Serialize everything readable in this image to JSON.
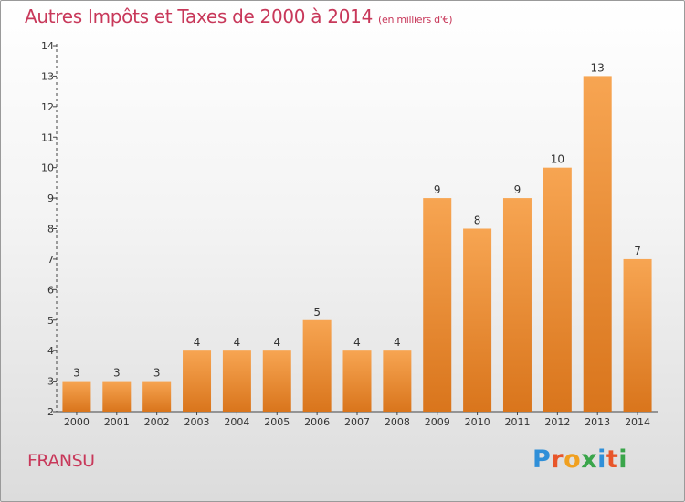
{
  "header": {
    "title": "Autres Impôts et Taxes de 2000 à 2014",
    "subtitle": "(en milliers d'€)"
  },
  "commune": "FRANSU",
  "logo": {
    "letters": [
      "P",
      "r",
      "o",
      "x",
      "i",
      "t",
      "i"
    ],
    "colors": [
      "#2f8fd8",
      "#e8562a",
      "#f0a020",
      "#3aa54a",
      "#2f8fd8",
      "#e8562a",
      "#3aa54a"
    ]
  },
  "colors": {
    "accent": "#c8385a",
    "bar_top": "#f7a552",
    "bar_bottom": "#d9751c"
  },
  "chart_data": {
    "type": "bar",
    "categories": [
      "2000",
      "2001",
      "2002",
      "2003",
      "2004",
      "2005",
      "2006",
      "2007",
      "2008",
      "2009",
      "2010",
      "2011",
      "2012",
      "2013",
      "2014"
    ],
    "values": [
      3,
      3,
      3,
      4,
      4,
      4,
      5,
      4,
      4,
      9,
      8,
      9,
      10,
      13,
      7
    ],
    "title": "Autres Impôts et Taxes de 2000 à 2014",
    "subtitle": "(en milliers d'€)",
    "xlabel": "",
    "ylabel": "",
    "ylim": [
      2,
      14
    ],
    "yticks": [
      2,
      3,
      4,
      5,
      6,
      7,
      8,
      9,
      10,
      11,
      12,
      13,
      14
    ],
    "grid": false,
    "legend": "none"
  }
}
